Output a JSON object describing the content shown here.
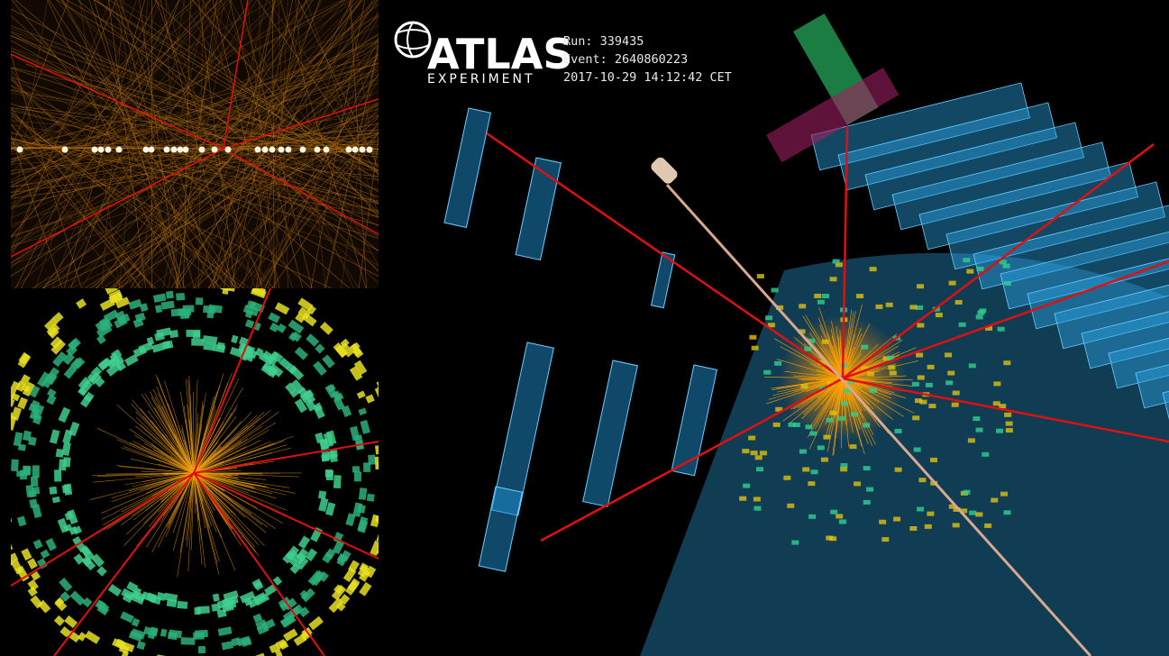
{
  "logo": {
    "name": "ATLAS",
    "subtitle": "EXPERIMENT"
  },
  "event_info": [
    "Run: 339435",
    "Event: 2640860223",
    "2017-10-29 14:12:42 CET"
  ]
}
